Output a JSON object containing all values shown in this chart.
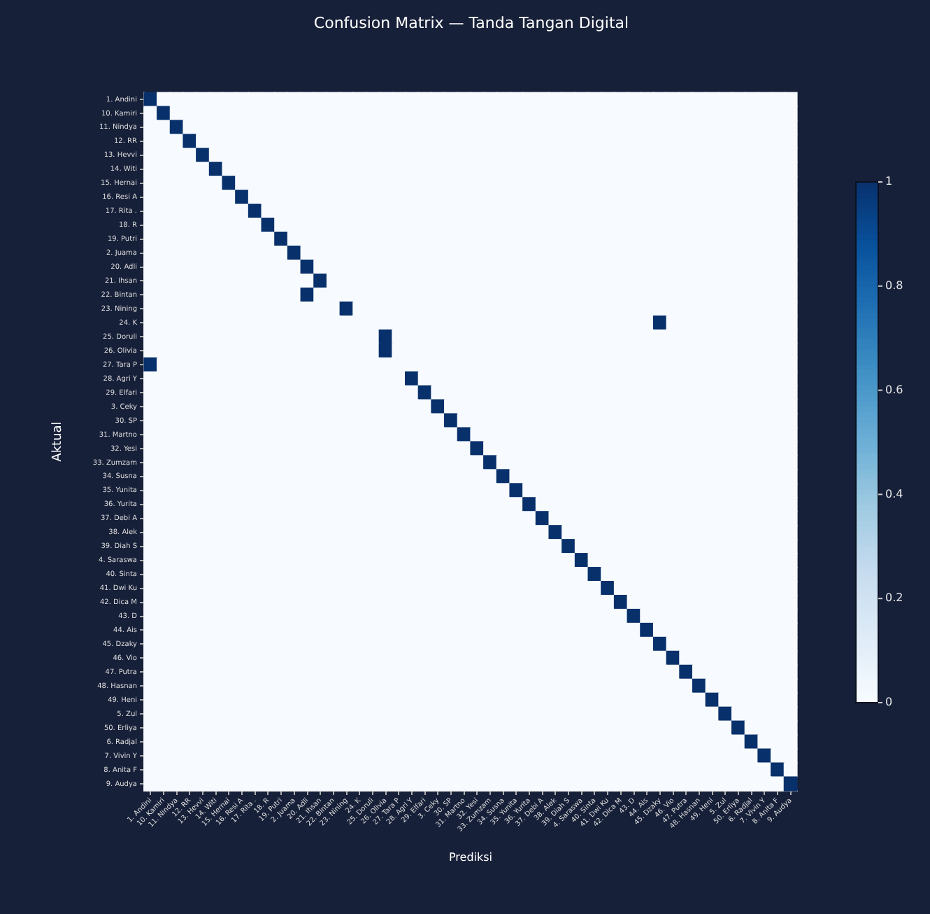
{
  "chart_data": {
    "type": "heatmap",
    "title": "Confusion Matrix — Tanda Tangan Digital",
    "xlabel": "Prediksi",
    "ylabel": "Aktual",
    "categories": [
      "1. Andini",
      "10. Kamiri",
      "11. Nindya",
      "12. RR",
      "13. Hevvi",
      "14. Witi",
      "15. Hernai",
      "16. Resi A",
      "17. Rita .",
      "18. R",
      "19. Putri",
      "2. Juama",
      "20. Adli",
      "21. Ihsan",
      "22. Bintan",
      "23. Nining",
      "24. K",
      "25. Doruli",
      "26. Olivia",
      "27. Tara P",
      "28. Agri Y",
      "29. Elfari",
      "3. Ceky",
      "30. SP",
      "31. Martno",
      "32. Yesi",
      "33. Zumzam",
      "34. Susna",
      "35. Yunita",
      "36. Yurita",
      "37. Debi A",
      "38. Alek",
      "39. Diah S",
      "4. Saraswa",
      "40. Sinta",
      "41. Dwi Ku",
      "42. Dica M",
      "43. D",
      "44. Ais",
      "45. Dzaky",
      "46. Vio",
      "47. Putra",
      "48. Hasnan",
      "49. Heni",
      "5. Zul",
      "50. Erliya",
      "6. Radjal",
      "7. Vivin Y",
      "8. Anita F",
      "9. Audya"
    ],
    "y_categories": [
      "1. Andini",
      "10. Kamiri",
      "11. Nindya",
      "12. RR",
      "13. Hevvi",
      "14. Witi",
      "15. Hernai",
      "16. Resi A",
      "17. Rita .",
      "18. R",
      "19. Putri",
      "2. Juama",
      "20. Adli",
      "21. Ihsan",
      "22. Bintan",
      "23. Nining",
      "24. K",
      "25. Doruli",
      "26. Olivia",
      "27. Tara P",
      "28. Agri Y",
      "29. Elfari",
      "3. Ceky",
      "30. SP",
      "31. Martno",
      "32. Yesi",
      "33. Zumzam",
      "34. Susna",
      "35. Yunita",
      "36. Yurita",
      "37. Debi A",
      "38. Alek",
      "39. Diah S",
      "4. Saraswa",
      "40. Sinta",
      "41. Dwi Ku",
      "42. Dica M",
      "43. D",
      "44. Ais",
      "45. Dzaky",
      "46. Vio",
      "47. Putra",
      "48. Hasnan",
      "49. Heni",
      "5. Zul",
      "50. Erliya",
      "6. Radjal",
      "7. Vivin Y",
      "8. Anita F",
      "9. Audya"
    ],
    "cells": [
      [
        1,
        0,
        0,
        0,
        0,
        0,
        0,
        0,
        0,
        0,
        0,
        0,
        0,
        0,
        0,
        0,
        0,
        0,
        0,
        0,
        0,
        0,
        0,
        0,
        0,
        0,
        0,
        0,
        0,
        0,
        0,
        0,
        0,
        0,
        0,
        0,
        0,
        0,
        0,
        0,
        0,
        0,
        0,
        0,
        0,
        0,
        0,
        0,
        0,
        0
      ],
      [
        0,
        1,
        0,
        0,
        0,
        0,
        0,
        0,
        0,
        0,
        0,
        0,
        0,
        0,
        0,
        0,
        0,
        0,
        0,
        0,
        0,
        0,
        0,
        0,
        0,
        0,
        0,
        0,
        0,
        0,
        0,
        0,
        0,
        0,
        0,
        0,
        0,
        0,
        0,
        0,
        0,
        0,
        0,
        0,
        0,
        0,
        0,
        0,
        0,
        0
      ],
      [
        0,
        0,
        1,
        0,
        0,
        0,
        0,
        0,
        0,
        0,
        0,
        0,
        0,
        0,
        0,
        0,
        0,
        0,
        0,
        0,
        0,
        0,
        0,
        0,
        0,
        0,
        0,
        0,
        0,
        0,
        0,
        0,
        0,
        0,
        0,
        0,
        0,
        0,
        0,
        0,
        0,
        0,
        0,
        0,
        0,
        0,
        0,
        0,
        0,
        0
      ],
      [
        0,
        0,
        0,
        1,
        0,
        0,
        0,
        0,
        0,
        0,
        0,
        0,
        0,
        0,
        0,
        0,
        0,
        0,
        0,
        0,
        0,
        0,
        0,
        0,
        0,
        0,
        0,
        0,
        0,
        0,
        0,
        0,
        0,
        0,
        0,
        0,
        0,
        0,
        0,
        0,
        0,
        0,
        0,
        0,
        0,
        0,
        0,
        0,
        0,
        0
      ],
      [
        0,
        0,
        0,
        0,
        1,
        0,
        0,
        0,
        0,
        0,
        0,
        0,
        0,
        0,
        0,
        0,
        0,
        0,
        0,
        0,
        0,
        0,
        0,
        0,
        0,
        0,
        0,
        0,
        0,
        0,
        0,
        0,
        0,
        0,
        0,
        0,
        0,
        0,
        0,
        0,
        0,
        0,
        0,
        0,
        0,
        0,
        0,
        0,
        0,
        0
      ],
      [
        0,
        0,
        0,
        0,
        0,
        1,
        0,
        0,
        0,
        0,
        0,
        0,
        0,
        0,
        0,
        0,
        0,
        0,
        0,
        0,
        0,
        0,
        0,
        0,
        0,
        0,
        0,
        0,
        0,
        0,
        0,
        0,
        0,
        0,
        0,
        0,
        0,
        0,
        0,
        0,
        0,
        0,
        0,
        0,
        0,
        0,
        0,
        0,
        0,
        0
      ],
      [
        0,
        0,
        0,
        0,
        0,
        0,
        1,
        0,
        0,
        0,
        0,
        0,
        0,
        0,
        0,
        0,
        0,
        0,
        0,
        0,
        0,
        0,
        0,
        0,
        0,
        0,
        0,
        0,
        0,
        0,
        0,
        0,
        0,
        0,
        0,
        0,
        0,
        0,
        0,
        0,
        0,
        0,
        0,
        0,
        0,
        0,
        0,
        0,
        0,
        0
      ],
      [
        0,
        0,
        0,
        0,
        0,
        0,
        0,
        1,
        0,
        0,
        0,
        0,
        0,
        0,
        0,
        0,
        0,
        0,
        0,
        0,
        0,
        0,
        0,
        0,
        0,
        0,
        0,
        0,
        0,
        0,
        0,
        0,
        0,
        0,
        0,
        0,
        0,
        0,
        0,
        0,
        0,
        0,
        0,
        0,
        0,
        0,
        0,
        0,
        0,
        0
      ],
      [
        0,
        0,
        0,
        0,
        0,
        0,
        0,
        0,
        1,
        0,
        0,
        0,
        0,
        0,
        0,
        0,
        0,
        0,
        0,
        0,
        0,
        0,
        0,
        0,
        0,
        0,
        0,
        0,
        0,
        0,
        0,
        0,
        0,
        0,
        0,
        0,
        0,
        0,
        0,
        0,
        0,
        0,
        0,
        0,
        0,
        0,
        0,
        0,
        0,
        0
      ],
      [
        0,
        0,
        0,
        0,
        0,
        0,
        0,
        0,
        0,
        1,
        0,
        0,
        0,
        0,
        0,
        0,
        0,
        0,
        0,
        0,
        0,
        0,
        0,
        0,
        0,
        0,
        0,
        0,
        0,
        0,
        0,
        0,
        0,
        0,
        0,
        0,
        0,
        0,
        0,
        0,
        0,
        0,
        0,
        0,
        0,
        0,
        0,
        0,
        0,
        0
      ],
      [
        0,
        0,
        0,
        0,
        0,
        0,
        0,
        0,
        0,
        0,
        1,
        0,
        0,
        0,
        0,
        0,
        0,
        0,
        0,
        0,
        0,
        0,
        0,
        0,
        0,
        0,
        0,
        0,
        0,
        0,
        0,
        0,
        0,
        0,
        0,
        0,
        0,
        0,
        0,
        0,
        0,
        0,
        0,
        0,
        0,
        0,
        0,
        0,
        0,
        0
      ],
      [
        0,
        0,
        0,
        0,
        0,
        0,
        0,
        0,
        0,
        0,
        0,
        1,
        0,
        0,
        0,
        0,
        0,
        0,
        0,
        0,
        0,
        0,
        0,
        0,
        0,
        0,
        0,
        0,
        0,
        0,
        0,
        0,
        0,
        0,
        0,
        0,
        0,
        0,
        0,
        0,
        0,
        0,
        0,
        0,
        0,
        0,
        0,
        0,
        0,
        0
      ],
      [
        0,
        0,
        0,
        0,
        0,
        0,
        0,
        0,
        0,
        0,
        0,
        0,
        1,
        0,
        0,
        0,
        0,
        0,
        0,
        0,
        0,
        0,
        0,
        0,
        0,
        0,
        0,
        0,
        0,
        0,
        0,
        0,
        0,
        0,
        0,
        0,
        0,
        0,
        0,
        0,
        0,
        0,
        0,
        0,
        0,
        0,
        0,
        0,
        0,
        0
      ],
      [
        0,
        0,
        0,
        0,
        0,
        0,
        0,
        0,
        0,
        0,
        0,
        0,
        0,
        1,
        0,
        0,
        0,
        0,
        0,
        0,
        0,
        0,
        0,
        0,
        0,
        0,
        0,
        0,
        0,
        0,
        0,
        0,
        0,
        0,
        0,
        0,
        0,
        0,
        0,
        0,
        0,
        0,
        0,
        0,
        0,
        0,
        0,
        0,
        0,
        0
      ],
      [
        0,
        0,
        0,
        0,
        0,
        0,
        0,
        0,
        0,
        0,
        0,
        0,
        1,
        0,
        0,
        0,
        0,
        0,
        0,
        0,
        0,
        0,
        0,
        0,
        0,
        0,
        0,
        0,
        0,
        0,
        0,
        0,
        0,
        0,
        0,
        0,
        0,
        0,
        0,
        0,
        0,
        0,
        0,
        0,
        0,
        0,
        0,
        0,
        0,
        0
      ],
      [
        0,
        0,
        0,
        0,
        0,
        0,
        0,
        0,
        0,
        0,
        0,
        0,
        0,
        0,
        0,
        1,
        0,
        0,
        0,
        0,
        0,
        0,
        0,
        0,
        0,
        0,
        0,
        0,
        0,
        0,
        0,
        0,
        0,
        0,
        0,
        0,
        0,
        0,
        0,
        0,
        0,
        0,
        0,
        0,
        0,
        0,
        0,
        0,
        0,
        0
      ],
      [
        0,
        0,
        0,
        0,
        0,
        0,
        0,
        0,
        0,
        0,
        0,
        0,
        0,
        0,
        0,
        0,
        0,
        0,
        0,
        0,
        0,
        0,
        0,
        0,
        0,
        0,
        0,
        0,
        0,
        0,
        0,
        0,
        0,
        0,
        0,
        0,
        0,
        0,
        0,
        1,
        0,
        0,
        0,
        0,
        0,
        0,
        0,
        0,
        0,
        0
      ],
      [
        0,
        0,
        0,
        0,
        0,
        0,
        0,
        0,
        0,
        0,
        0,
        0,
        0,
        0,
        0,
        0,
        0,
        0,
        1,
        0,
        0,
        0,
        0,
        0,
        0,
        0,
        0,
        0,
        0,
        0,
        0,
        0,
        0,
        0,
        0,
        0,
        0,
        0,
        0,
        0,
        0,
        0,
        0,
        0,
        0,
        0,
        0,
        0,
        0,
        0
      ],
      [
        0,
        0,
        0,
        0,
        0,
        0,
        0,
        0,
        0,
        0,
        0,
        0,
        0,
        0,
        0,
        0,
        0,
        0,
        1,
        0,
        0,
        0,
        0,
        0,
        0,
        0,
        0,
        0,
        0,
        0,
        0,
        0,
        0,
        0,
        0,
        0,
        0,
        0,
        0,
        0,
        0,
        0,
        0,
        0,
        0,
        0,
        0,
        0,
        0,
        0
      ],
      [
        1,
        0,
        0,
        0,
        0,
        0,
        0,
        0,
        0,
        0,
        0,
        0,
        0,
        0,
        0,
        0,
        0,
        0,
        0,
        0,
        0,
        0,
        0,
        0,
        0,
        0,
        0,
        0,
        0,
        0,
        0,
        0,
        0,
        0,
        0,
        0,
        0,
        0,
        0,
        0,
        0,
        0,
        0,
        0,
        0,
        0,
        0,
        0,
        0,
        0
      ],
      [
        0,
        0,
        0,
        0,
        0,
        0,
        0,
        0,
        0,
        0,
        0,
        0,
        0,
        0,
        0,
        0,
        0,
        0,
        0,
        0,
        1,
        0,
        0,
        0,
        0,
        0,
        0,
        0,
        0,
        0,
        0,
        0,
        0,
        0,
        0,
        0,
        0,
        0,
        0,
        0,
        0,
        0,
        0,
        0,
        0,
        0,
        0,
        0,
        0,
        0
      ],
      [
        0,
        0,
        0,
        0,
        0,
        0,
        0,
        0,
        0,
        0,
        0,
        0,
        0,
        0,
        0,
        0,
        0,
        0,
        0,
        0,
        0,
        1,
        0,
        0,
        0,
        0,
        0,
        0,
        0,
        0,
        0,
        0,
        0,
        0,
        0,
        0,
        0,
        0,
        0,
        0,
        0,
        0,
        0,
        0,
        0,
        0,
        0,
        0,
        0,
        0
      ],
      [
        0,
        0,
        0,
        0,
        0,
        0,
        0,
        0,
        0,
        0,
        0,
        0,
        0,
        0,
        0,
        0,
        0,
        0,
        0,
        0,
        0,
        0,
        1,
        0,
        0,
        0,
        0,
        0,
        0,
        0,
        0,
        0,
        0,
        0,
        0,
        0,
        0,
        0,
        0,
        0,
        0,
        0,
        0,
        0,
        0,
        0,
        0,
        0,
        0,
        0
      ],
      [
        0,
        0,
        0,
        0,
        0,
        0,
        0,
        0,
        0,
        0,
        0,
        0,
        0,
        0,
        0,
        0,
        0,
        0,
        0,
        0,
        0,
        0,
        0,
        1,
        0,
        0,
        0,
        0,
        0,
        0,
        0,
        0,
        0,
        0,
        0,
        0,
        0,
        0,
        0,
        0,
        0,
        0,
        0,
        0,
        0,
        0,
        0,
        0,
        0,
        0
      ],
      [
        0,
        0,
        0,
        0,
        0,
        0,
        0,
        0,
        0,
        0,
        0,
        0,
        0,
        0,
        0,
        0,
        0,
        0,
        0,
        0,
        0,
        0,
        0,
        0,
        1,
        0,
        0,
        0,
        0,
        0,
        0,
        0,
        0,
        0,
        0,
        0,
        0,
        0,
        0,
        0,
        0,
        0,
        0,
        0,
        0,
        0,
        0,
        0,
        0,
        0
      ],
      [
        0,
        0,
        0,
        0,
        0,
        0,
        0,
        0,
        0,
        0,
        0,
        0,
        0,
        0,
        0,
        0,
        0,
        0,
        0,
        0,
        0,
        0,
        0,
        0,
        0,
        1,
        0,
        0,
        0,
        0,
        0,
        0,
        0,
        0,
        0,
        0,
        0,
        0,
        0,
        0,
        0,
        0,
        0,
        0,
        0,
        0,
        0,
        0,
        0,
        0
      ],
      [
        0,
        0,
        0,
        0,
        0,
        0,
        0,
        0,
        0,
        0,
        0,
        0,
        0,
        0,
        0,
        0,
        0,
        0,
        0,
        0,
        0,
        0,
        0,
        0,
        0,
        0,
        1,
        0,
        0,
        0,
        0,
        0,
        0,
        0,
        0,
        0,
        0,
        0,
        0,
        0,
        0,
        0,
        0,
        0,
        0,
        0,
        0,
        0,
        0,
        0
      ],
      [
        0,
        0,
        0,
        0,
        0,
        0,
        0,
        0,
        0,
        0,
        0,
        0,
        0,
        0,
        0,
        0,
        0,
        0,
        0,
        0,
        0,
        0,
        0,
        0,
        0,
        0,
        0,
        1,
        0,
        0,
        0,
        0,
        0,
        0,
        0,
        0,
        0,
        0,
        0,
        0,
        0,
        0,
        0,
        0,
        0,
        0,
        0,
        0,
        0,
        0
      ],
      [
        0,
        0,
        0,
        0,
        0,
        0,
        0,
        0,
        0,
        0,
        0,
        0,
        0,
        0,
        0,
        0,
        0,
        0,
        0,
        0,
        0,
        0,
        0,
        0,
        0,
        0,
        0,
        0,
        1,
        0,
        0,
        0,
        0,
        0,
        0,
        0,
        0,
        0,
        0,
        0,
        0,
        0,
        0,
        0,
        0,
        0,
        0,
        0,
        0,
        0
      ],
      [
        0,
        0,
        0,
        0,
        0,
        0,
        0,
        0,
        0,
        0,
        0,
        0,
        0,
        0,
        0,
        0,
        0,
        0,
        0,
        0,
        0,
        0,
        0,
        0,
        0,
        0,
        0,
        0,
        0,
        1,
        0,
        0,
        0,
        0,
        0,
        0,
        0,
        0,
        0,
        0,
        0,
        0,
        0,
        0,
        0,
        0,
        0,
        0,
        0,
        0
      ],
      [
        0,
        0,
        0,
        0,
        0,
        0,
        0,
        0,
        0,
        0,
        0,
        0,
        0,
        0,
        0,
        0,
        0,
        0,
        0,
        0,
        0,
        0,
        0,
        0,
        0,
        0,
        0,
        0,
        0,
        0,
        1,
        0,
        0,
        0,
        0,
        0,
        0,
        0,
        0,
        0,
        0,
        0,
        0,
        0,
        0,
        0,
        0,
        0,
        0,
        0
      ],
      [
        0,
        0,
        0,
        0,
        0,
        0,
        0,
        0,
        0,
        0,
        0,
        0,
        0,
        0,
        0,
        0,
        0,
        0,
        0,
        0,
        0,
        0,
        0,
        0,
        0,
        0,
        0,
        0,
        0,
        0,
        0,
        1,
        0,
        0,
        0,
        0,
        0,
        0,
        0,
        0,
        0,
        0,
        0,
        0,
        0,
        0,
        0,
        0,
        0,
        0
      ],
      [
        0,
        0,
        0,
        0,
        0,
        0,
        0,
        0,
        0,
        0,
        0,
        0,
        0,
        0,
        0,
        0,
        0,
        0,
        0,
        0,
        0,
        0,
        0,
        0,
        0,
        0,
        0,
        0,
        0,
        0,
        0,
        0,
        1,
        0,
        0,
        0,
        0,
        0,
        0,
        0,
        0,
        0,
        0,
        0,
        0,
        0,
        0,
        0,
        0,
        0
      ],
      [
        0,
        0,
        0,
        0,
        0,
        0,
        0,
        0,
        0,
        0,
        0,
        0,
        0,
        0,
        0,
        0,
        0,
        0,
        0,
        0,
        0,
        0,
        0,
        0,
        0,
        0,
        0,
        0,
        0,
        0,
        0,
        0,
        0,
        1,
        0,
        0,
        0,
        0,
        0,
        0,
        0,
        0,
        0,
        0,
        0,
        0,
        0,
        0,
        0,
        0
      ],
      [
        0,
        0,
        0,
        0,
        0,
        0,
        0,
        0,
        0,
        0,
        0,
        0,
        0,
        0,
        0,
        0,
        0,
        0,
        0,
        0,
        0,
        0,
        0,
        0,
        0,
        0,
        0,
        0,
        0,
        0,
        0,
        0,
        0,
        0,
        1,
        0,
        0,
        0,
        0,
        0,
        0,
        0,
        0,
        0,
        0,
        0,
        0,
        0,
        0,
        0
      ],
      [
        0,
        0,
        0,
        0,
        0,
        0,
        0,
        0,
        0,
        0,
        0,
        0,
        0,
        0,
        0,
        0,
        0,
        0,
        0,
        0,
        0,
        0,
        0,
        0,
        0,
        0,
        0,
        0,
        0,
        0,
        0,
        0,
        0,
        0,
        0,
        1,
        0,
        0,
        0,
        0,
        0,
        0,
        0,
        0,
        0,
        0,
        0,
        0,
        0,
        0
      ],
      [
        0,
        0,
        0,
        0,
        0,
        0,
        0,
        0,
        0,
        0,
        0,
        0,
        0,
        0,
        0,
        0,
        0,
        0,
        0,
        0,
        0,
        0,
        0,
        0,
        0,
        0,
        0,
        0,
        0,
        0,
        0,
        0,
        0,
        0,
        0,
        0,
        1,
        0,
        0,
        0,
        0,
        0,
        0,
        0,
        0,
        0,
        0,
        0,
        0,
        0
      ],
      [
        0,
        0,
        0,
        0,
        0,
        0,
        0,
        0,
        0,
        0,
        0,
        0,
        0,
        0,
        0,
        0,
        0,
        0,
        0,
        0,
        0,
        0,
        0,
        0,
        0,
        0,
        0,
        0,
        0,
        0,
        0,
        0,
        0,
        0,
        0,
        0,
        0,
        1,
        0,
        0,
        0,
        0,
        0,
        0,
        0,
        0,
        0,
        0,
        0,
        0
      ],
      [
        0,
        0,
        0,
        0,
        0,
        0,
        0,
        0,
        0,
        0,
        0,
        0,
        0,
        0,
        0,
        0,
        0,
        0,
        0,
        0,
        0,
        0,
        0,
        0,
        0,
        0,
        0,
        0,
        0,
        0,
        0,
        0,
        0,
        0,
        0,
        0,
        0,
        0,
        1,
        0,
        0,
        0,
        0,
        0,
        0,
        0,
        0,
        0,
        0,
        0
      ],
      [
        0,
        0,
        0,
        0,
        0,
        0,
        0,
        0,
        0,
        0,
        0,
        0,
        0,
        0,
        0,
        0,
        0,
        0,
        0,
        0,
        0,
        0,
        0,
        0,
        0,
        0,
        0,
        0,
        0,
        0,
        0,
        0,
        0,
        0,
        0,
        0,
        0,
        0,
        0,
        1,
        0,
        0,
        0,
        0,
        0,
        0,
        0,
        0,
        0,
        0
      ],
      [
        0,
        0,
        0,
        0,
        0,
        0,
        0,
        0,
        0,
        0,
        0,
        0,
        0,
        0,
        0,
        0,
        0,
        0,
        0,
        0,
        0,
        0,
        0,
        0,
        0,
        0,
        0,
        0,
        0,
        0,
        0,
        0,
        0,
        0,
        0,
        0,
        0,
        0,
        0,
        0,
        1,
        0,
        0,
        0,
        0,
        0,
        0,
        0,
        0,
        0
      ],
      [
        0,
        0,
        0,
        0,
        0,
        0,
        0,
        0,
        0,
        0,
        0,
        0,
        0,
        0,
        0,
        0,
        0,
        0,
        0,
        0,
        0,
        0,
        0,
        0,
        0,
        0,
        0,
        0,
        0,
        0,
        0,
        0,
        0,
        0,
        0,
        0,
        0,
        0,
        0,
        0,
        0,
        1,
        0,
        0,
        0,
        0,
        0,
        0,
        0,
        0
      ],
      [
        0,
        0,
        0,
        0,
        0,
        0,
        0,
        0,
        0,
        0,
        0,
        0,
        0,
        0,
        0,
        0,
        0,
        0,
        0,
        0,
        0,
        0,
        0,
        0,
        0,
        0,
        0,
        0,
        0,
        0,
        0,
        0,
        0,
        0,
        0,
        0,
        0,
        0,
        0,
        0,
        0,
        0,
        1,
        0,
        0,
        0,
        0,
        0,
        0,
        0
      ],
      [
        0,
        0,
        0,
        0,
        0,
        0,
        0,
        0,
        0,
        0,
        0,
        0,
        0,
        0,
        0,
        0,
        0,
        0,
        0,
        0,
        0,
        0,
        0,
        0,
        0,
        0,
        0,
        0,
        0,
        0,
        0,
        0,
        0,
        0,
        0,
        0,
        0,
        0,
        0,
        0,
        0,
        0,
        0,
        1,
        0,
        0,
        0,
        0,
        0,
        0
      ],
      [
        0,
        0,
        0,
        0,
        0,
        0,
        0,
        0,
        0,
        0,
        0,
        0,
        0,
        0,
        0,
        0,
        0,
        0,
        0,
        0,
        0,
        0,
        0,
        0,
        0,
        0,
        0,
        0,
        0,
        0,
        0,
        0,
        0,
        0,
        0,
        0,
        0,
        0,
        0,
        0,
        0,
        0,
        0,
        0,
        1,
        0,
        0,
        0,
        0,
        0
      ],
      [
        0,
        0,
        0,
        0,
        0,
        0,
        0,
        0,
        0,
        0,
        0,
        0,
        0,
        0,
        0,
        0,
        0,
        0,
        0,
        0,
        0,
        0,
        0,
        0,
        0,
        0,
        0,
        0,
        0,
        0,
        0,
        0,
        0,
        0,
        0,
        0,
        0,
        0,
        0,
        0,
        0,
        0,
        0,
        0,
        0,
        1,
        0,
        0,
        0,
        0
      ],
      [
        0,
        0,
        0,
        0,
        0,
        0,
        0,
        0,
        0,
        0,
        0,
        0,
        0,
        0,
        0,
        0,
        0,
        0,
        0,
        0,
        0,
        0,
        0,
        0,
        0,
        0,
        0,
        0,
        0,
        0,
        0,
        0,
        0,
        0,
        0,
        0,
        0,
        0,
        0,
        0,
        0,
        0,
        0,
        0,
        0,
        0,
        1,
        0,
        0,
        0
      ],
      [
        0,
        0,
        0,
        0,
        0,
        0,
        0,
        0,
        0,
        0,
        0,
        0,
        0,
        0,
        0,
        0,
        0,
        0,
        0,
        0,
        0,
        0,
        0,
        0,
        0,
        0,
        0,
        0,
        0,
        0,
        0,
        0,
        0,
        0,
        0,
        0,
        0,
        0,
        0,
        0,
        0,
        0,
        0,
        0,
        0,
        0,
        0,
        1,
        0,
        0
      ],
      [
        0,
        0,
        0,
        0,
        0,
        0,
        0,
        0,
        0,
        0,
        0,
        0,
        0,
        0,
        0,
        0,
        0,
        0,
        0,
        0,
        0,
        0,
        0,
        0,
        0,
        0,
        0,
        0,
        0,
        0,
        0,
        0,
        0,
        0,
        0,
        0,
        0,
        0,
        0,
        0,
        0,
        0,
        0,
        0,
        0,
        0,
        0,
        0,
        1,
        0
      ],
      [
        0,
        0,
        0,
        0,
        0,
        0,
        0,
        0,
        0,
        0,
        0,
        0,
        0,
        0,
        0,
        0,
        0,
        0,
        0,
        0,
        0,
        0,
        0,
        0,
        0,
        0,
        0,
        0,
        0,
        0,
        0,
        0,
        0,
        0,
        0,
        0,
        0,
        0,
        0,
        0,
        0,
        0,
        0,
        0,
        0,
        0,
        0,
        0,
        0,
        1
      ]
    ],
    "clim": [
      0,
      1
    ],
    "cticks": [
      0,
      0.2,
      0.4,
      0.6,
      0.8,
      1
    ]
  }
}
